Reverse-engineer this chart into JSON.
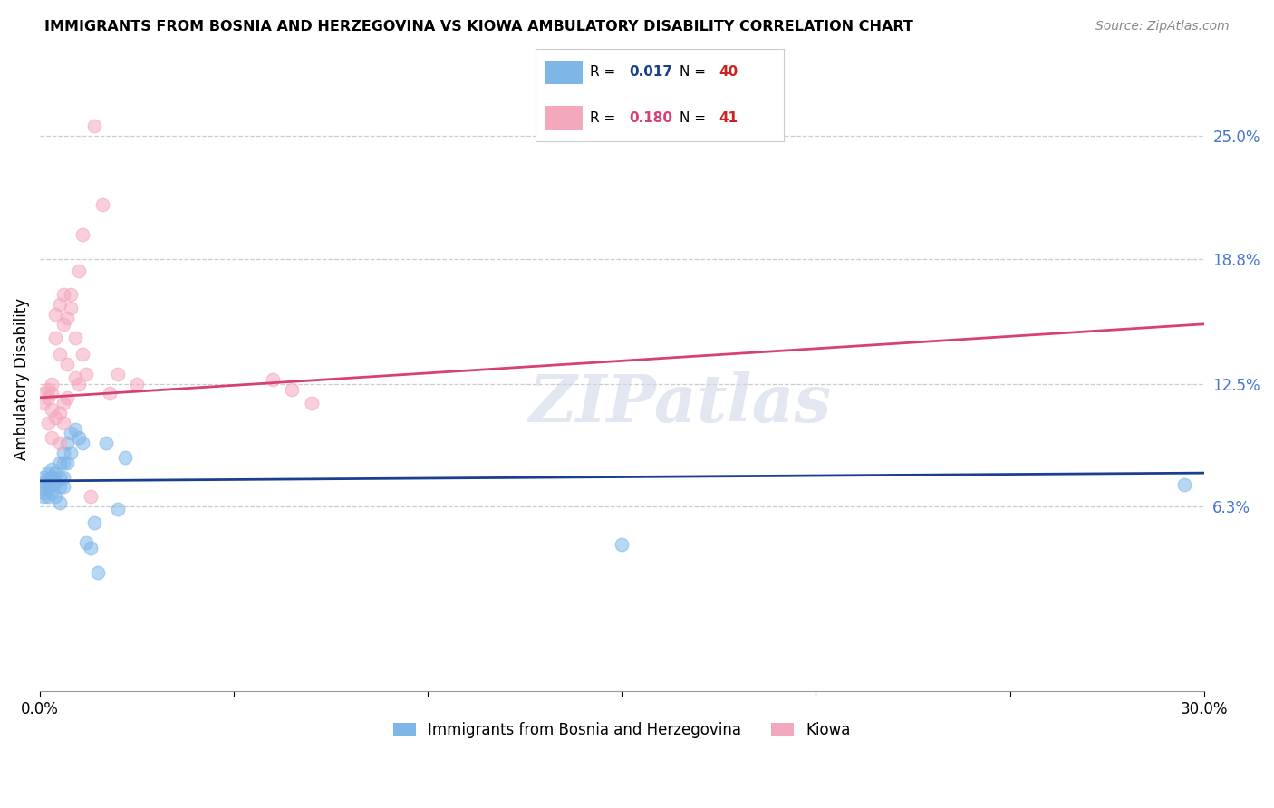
{
  "title": "IMMIGRANTS FROM BOSNIA AND HERZEGOVINA VS KIOWA AMBULATORY DISABILITY CORRELATION CHART",
  "source": "Source: ZipAtlas.com",
  "ylabel": "Ambulatory Disability",
  "xlim": [
    0.0,
    0.3
  ],
  "ylim": [
    -0.03,
    0.285
  ],
  "watermark": "ZIPatlas",
  "label1": "Immigrants from Bosnia and Herzegovina",
  "label2": "Kiowa",
  "blue_color": "#7eb6e8",
  "pink_color": "#f4a8bc",
  "blue_line_color": "#1a3f8f",
  "pink_line_color": "#d84070",
  "legend_blue_R": "0.017",
  "legend_blue_N": "40",
  "legend_pink_R": "0.180",
  "legend_pink_N": "41",
  "blue_line_y0": 0.076,
  "blue_line_y1": 0.08,
  "pink_line_y0": 0.118,
  "pink_line_y1": 0.155,
  "blue_x": [
    0.001,
    0.001,
    0.001,
    0.001,
    0.001,
    0.002,
    0.002,
    0.002,
    0.002,
    0.003,
    0.003,
    0.003,
    0.003,
    0.004,
    0.004,
    0.004,
    0.005,
    0.005,
    0.005,
    0.005,
    0.006,
    0.006,
    0.006,
    0.006,
    0.007,
    0.007,
    0.008,
    0.008,
    0.009,
    0.01,
    0.011,
    0.012,
    0.013,
    0.014,
    0.015,
    0.017,
    0.02,
    0.022,
    0.15,
    0.295
  ],
  "blue_y": [
    0.078,
    0.075,
    0.072,
    0.07,
    0.068,
    0.08,
    0.077,
    0.073,
    0.068,
    0.082,
    0.078,
    0.074,
    0.07,
    0.08,
    0.075,
    0.068,
    0.085,
    0.078,
    0.073,
    0.065,
    0.09,
    0.085,
    0.078,
    0.073,
    0.095,
    0.085,
    0.1,
    0.09,
    0.102,
    0.098,
    0.095,
    0.045,
    0.042,
    0.055,
    0.03,
    0.095,
    0.062,
    0.088,
    0.044,
    0.074
  ],
  "pink_x": [
    0.001,
    0.001,
    0.002,
    0.002,
    0.002,
    0.003,
    0.003,
    0.003,
    0.003,
    0.004,
    0.004,
    0.004,
    0.005,
    0.005,
    0.005,
    0.005,
    0.006,
    0.006,
    0.006,
    0.006,
    0.007,
    0.007,
    0.007,
    0.008,
    0.008,
    0.009,
    0.009,
    0.01,
    0.01,
    0.011,
    0.011,
    0.012,
    0.013,
    0.014,
    0.016,
    0.018,
    0.02,
    0.025,
    0.06,
    0.065,
    0.07
  ],
  "pink_y": [
    0.115,
    0.12,
    0.118,
    0.105,
    0.122,
    0.098,
    0.112,
    0.12,
    0.125,
    0.148,
    0.108,
    0.16,
    0.165,
    0.11,
    0.095,
    0.14,
    0.17,
    0.105,
    0.115,
    0.155,
    0.158,
    0.118,
    0.135,
    0.163,
    0.17,
    0.128,
    0.148,
    0.125,
    0.182,
    0.14,
    0.2,
    0.13,
    0.068,
    0.255,
    0.215,
    0.12,
    0.13,
    0.125,
    0.127,
    0.122,
    0.115
  ]
}
